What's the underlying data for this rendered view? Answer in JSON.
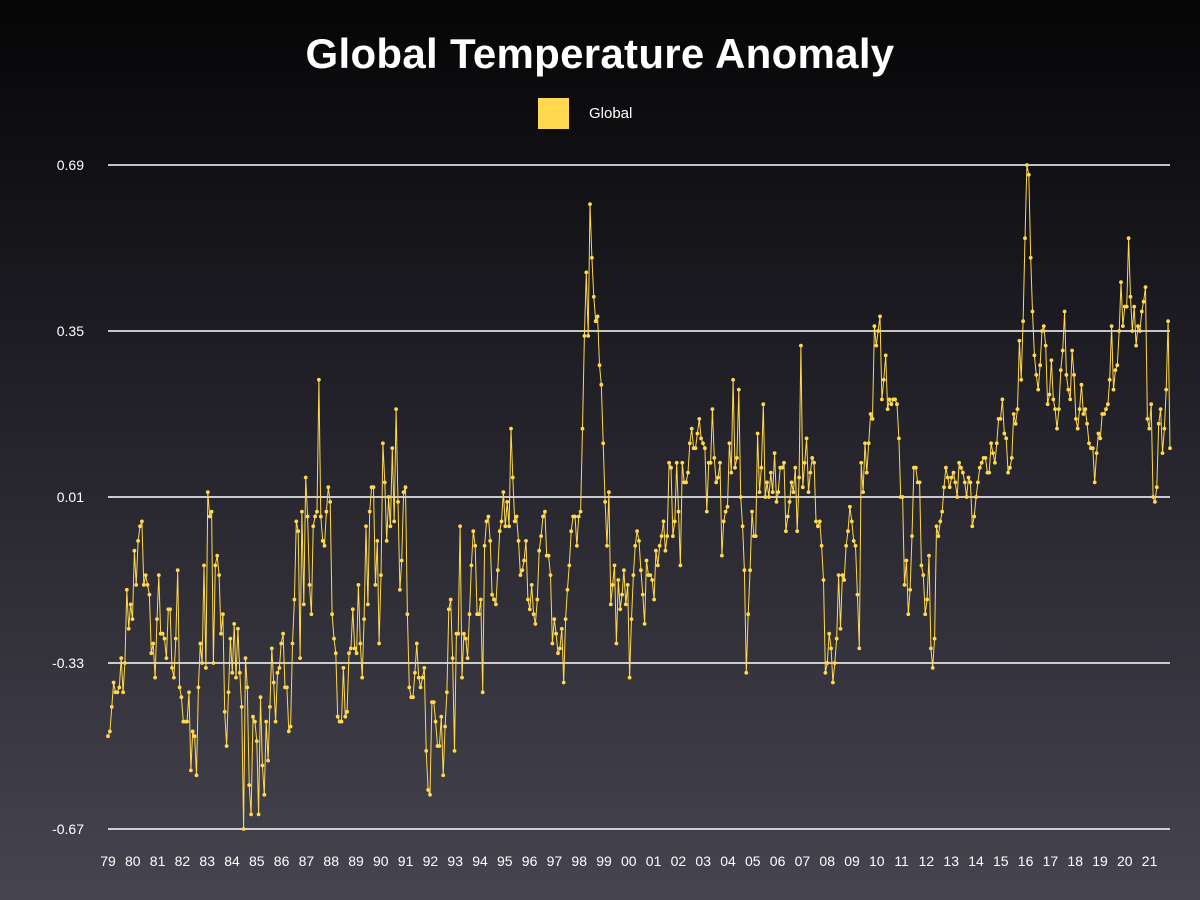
{
  "chart_data": {
    "type": "line",
    "title": "Global Temperature Anomaly",
    "xlabel": "",
    "ylabel": "",
    "legend": {
      "position": "top-center",
      "entries": [
        "Global"
      ]
    },
    "grid": "horizontal",
    "y_ticks": [
      "0.69",
      "0.35",
      "0.01",
      "-0.33",
      "-0.67"
    ],
    "y_tick_values": [
      0.69,
      0.35,
      0.01,
      -0.33,
      -0.67
    ],
    "ylim": [
      -0.67,
      0.69
    ],
    "x_ticks": [
      "79",
      "80",
      "81",
      "82",
      "83",
      "84",
      "85",
      "86",
      "87",
      "88",
      "89",
      "90",
      "91",
      "92",
      "93",
      "94",
      "95",
      "96",
      "97",
      "98",
      "99",
      "00",
      "01",
      "02",
      "03",
      "04",
      "05",
      "06",
      "07",
      "08",
      "09",
      "10",
      "11",
      "12",
      "13",
      "14",
      "15",
      "16",
      "17",
      "18",
      "19",
      "20",
      "21"
    ],
    "x_start": "1979-01",
    "x_unit": "month",
    "series": [
      {
        "name": "Global",
        "color": "#ffd84d",
        "values": [
          -0.48,
          -0.47,
          -0.42,
          -0.37,
          -0.39,
          -0.39,
          -0.38,
          -0.32,
          -0.39,
          -0.33,
          -0.18,
          -0.26,
          -0.21,
          -0.24,
          -0.1,
          -0.17,
          -0.08,
          -0.05,
          -0.04,
          -0.17,
          -0.15,
          -0.17,
          -0.19,
          -0.31,
          -0.29,
          -0.36,
          -0.24,
          -0.15,
          -0.27,
          -0.27,
          -0.28,
          -0.32,
          -0.22,
          -0.22,
          -0.34,
          -0.36,
          -0.28,
          -0.14,
          -0.38,
          -0.4,
          -0.45,
          -0.45,
          -0.45,
          -0.39,
          -0.55,
          -0.47,
          -0.48,
          -0.56,
          -0.38,
          -0.29,
          -0.33,
          -0.13,
          -0.34,
          0.02,
          -0.03,
          -0.02,
          -0.33,
          -0.13,
          -0.11,
          -0.15,
          -0.27,
          -0.23,
          -0.43,
          -0.5,
          -0.39,
          -0.28,
          -0.35,
          -0.25,
          -0.36,
          -0.26,
          -0.35,
          -0.42,
          -0.67,
          -0.32,
          -0.38,
          -0.58,
          -0.64,
          -0.44,
          -0.45,
          -0.49,
          -0.64,
          -0.4,
          -0.54,
          -0.6,
          -0.45,
          -0.53,
          -0.42,
          -0.3,
          -0.37,
          -0.45,
          -0.35,
          -0.34,
          -0.29,
          -0.27,
          -0.38,
          -0.38,
          -0.47,
          -0.46,
          -0.29,
          -0.2,
          -0.04,
          -0.06,
          -0.32,
          -0.02,
          -0.21,
          0.05,
          -0.03,
          -0.17,
          -0.23,
          -0.05,
          -0.03,
          -0.02,
          0.25,
          -0.03,
          -0.08,
          -0.09,
          -0.02,
          0.03,
          0.0,
          -0.23,
          -0.28,
          -0.31,
          -0.44,
          -0.45,
          -0.45,
          -0.34,
          -0.44,
          -0.43,
          -0.31,
          -0.3,
          -0.22,
          -0.3,
          -0.31,
          -0.17,
          -0.29,
          -0.36,
          -0.24,
          -0.05,
          -0.21,
          -0.02,
          0.03,
          0.03,
          -0.17,
          -0.08,
          -0.29,
          -0.15,
          0.12,
          0.04,
          -0.08,
          0.01,
          -0.05,
          0.11,
          -0.04,
          0.19,
          0.0,
          -0.18,
          -0.12,
          0.02,
          0.03,
          -0.23,
          -0.38,
          -0.4,
          -0.4,
          -0.35,
          -0.29,
          -0.36,
          -0.38,
          -0.36,
          -0.34,
          -0.51,
          -0.59,
          -0.6,
          -0.41,
          -0.41,
          -0.45,
          -0.5,
          -0.5,
          -0.44,
          -0.56,
          -0.46,
          -0.39,
          -0.22,
          -0.2,
          -0.32,
          -0.51,
          -0.27,
          -0.27,
          -0.05,
          -0.36,
          -0.27,
          -0.28,
          -0.32,
          -0.23,
          -0.13,
          -0.06,
          -0.09,
          -0.23,
          -0.23,
          -0.2,
          -0.39,
          -0.09,
          -0.04,
          -0.03,
          -0.08,
          -0.19,
          -0.2,
          -0.21,
          -0.14,
          -0.06,
          -0.04,
          0.02,
          -0.05,
          -0.0,
          -0.05,
          0.15,
          0.05,
          -0.04,
          -0.03,
          -0.08,
          -0.15,
          -0.14,
          -0.12,
          -0.08,
          -0.2,
          -0.22,
          -0.17,
          -0.23,
          -0.25,
          -0.2,
          -0.1,
          -0.07,
          -0.03,
          -0.02,
          -0.11,
          -0.11,
          -0.15,
          -0.29,
          -0.24,
          -0.27,
          -0.31,
          -0.3,
          -0.26,
          -0.37,
          -0.24,
          -0.18,
          -0.13,
          -0.06,
          -0.03,
          -0.03,
          -0.09,
          -0.03,
          -0.02,
          0.15,
          0.34,
          0.47,
          0.34,
          0.61,
          0.5,
          0.42,
          0.37,
          0.38,
          0.28,
          0.24,
          0.12,
          0.0,
          -0.09,
          0.02,
          -0.21,
          -0.17,
          -0.13,
          -0.29,
          -0.16,
          -0.22,
          -0.19,
          -0.14,
          -0.21,
          -0.17,
          -0.36,
          -0.24,
          -0.15,
          -0.09,
          -0.06,
          -0.08,
          -0.14,
          -0.19,
          -0.25,
          -0.12,
          -0.15,
          -0.15,
          -0.16,
          -0.2,
          -0.1,
          -0.13,
          -0.09,
          -0.07,
          -0.04,
          -0.1,
          -0.07,
          0.08,
          0.07,
          -0.07,
          -0.04,
          0.08,
          -0.02,
          -0.13,
          0.08,
          0.04,
          0.04,
          0.06,
          0.12,
          0.15,
          0.11,
          0.11,
          0.14,
          0.17,
          0.13,
          0.12,
          0.11,
          -0.02,
          0.08,
          0.08,
          0.19,
          0.09,
          0.04,
          0.05,
          0.08,
          -0.11,
          -0.04,
          -0.02,
          -0.01,
          0.12,
          0.06,
          0.25,
          0.07,
          0.09,
          0.23,
          0.01,
          -0.05,
          -0.14,
          -0.35,
          -0.23,
          -0.14,
          -0.02,
          -0.07,
          -0.07,
          0.14,
          0.02,
          0.07,
          0.2,
          0.01,
          0.04,
          0.01,
          0.06,
          0.02,
          0.1,
          -0.0,
          0.02,
          0.07,
          0.07,
          0.08,
          -0.06,
          -0.03,
          -0.0,
          0.04,
          0.02,
          0.07,
          -0.06,
          0.05,
          0.32,
          0.03,
          0.08,
          0.13,
          0.02,
          0.06,
          0.09,
          0.08,
          -0.04,
          -0.05,
          -0.04,
          -0.09,
          -0.16,
          -0.35,
          -0.33,
          -0.27,
          -0.3,
          -0.37,
          -0.33,
          -0.28,
          -0.15,
          -0.26,
          -0.15,
          -0.16,
          -0.09,
          -0.06,
          -0.01,
          -0.04,
          -0.08,
          -0.09,
          -0.19,
          -0.3,
          0.08,
          0.02,
          0.12,
          0.06,
          0.12,
          0.18,
          0.17,
          0.36,
          0.32,
          0.35,
          0.38,
          0.21,
          0.25,
          0.3,
          0.19,
          0.21,
          0.2,
          0.21,
          0.21,
          0.2,
          0.13,
          0.01,
          0.01,
          -0.17,
          -0.12,
          -0.23,
          -0.18,
          -0.07,
          0.07,
          0.07,
          0.04,
          0.04,
          -0.13,
          -0.15,
          -0.23,
          -0.2,
          -0.11,
          -0.3,
          -0.34,
          -0.28,
          -0.05,
          -0.07,
          -0.04,
          -0.02,
          0.03,
          0.07,
          0.05,
          0.03,
          0.05,
          0.06,
          0.04,
          0.01,
          0.08,
          0.07,
          0.06,
          0.04,
          0.01,
          0.05,
          0.04,
          -0.05,
          -0.03,
          0.01,
          0.04,
          0.07,
          0.08,
          0.09,
          0.09,
          0.06,
          0.06,
          0.12,
          0.1,
          0.08,
          0.12,
          0.17,
          0.17,
          0.21,
          0.14,
          0.13,
          0.06,
          0.07,
          0.09,
          0.18,
          0.16,
          0.19,
          0.33,
          0.25,
          0.37,
          0.54,
          0.69,
          0.67,
          0.5,
          0.39,
          0.3,
          0.26,
          0.23,
          0.28,
          0.35,
          0.36,
          0.32,
          0.2,
          0.22,
          0.29,
          0.21,
          0.19,
          0.15,
          0.19,
          0.27,
          0.31,
          0.39,
          0.26,
          0.23,
          0.21,
          0.31,
          0.26,
          0.17,
          0.15,
          0.19,
          0.24,
          0.18,
          0.19,
          0.16,
          0.12,
          0.11,
          0.11,
          0.04,
          0.1,
          0.14,
          0.13,
          0.18,
          0.18,
          0.19,
          0.2,
          0.25,
          0.36,
          0.23,
          0.27,
          0.28,
          0.35,
          0.45,
          0.36,
          0.4,
          0.4,
          0.54,
          0.42,
          0.35,
          0.4,
          0.32,
          0.36,
          0.35,
          0.39,
          0.41,
          0.44,
          0.17,
          0.15,
          0.2,
          0.01,
          0.0,
          0.03,
          0.16,
          0.19,
          0.1,
          0.15,
          0.23,
          0.37,
          0.11
        ]
      }
    ]
  }
}
